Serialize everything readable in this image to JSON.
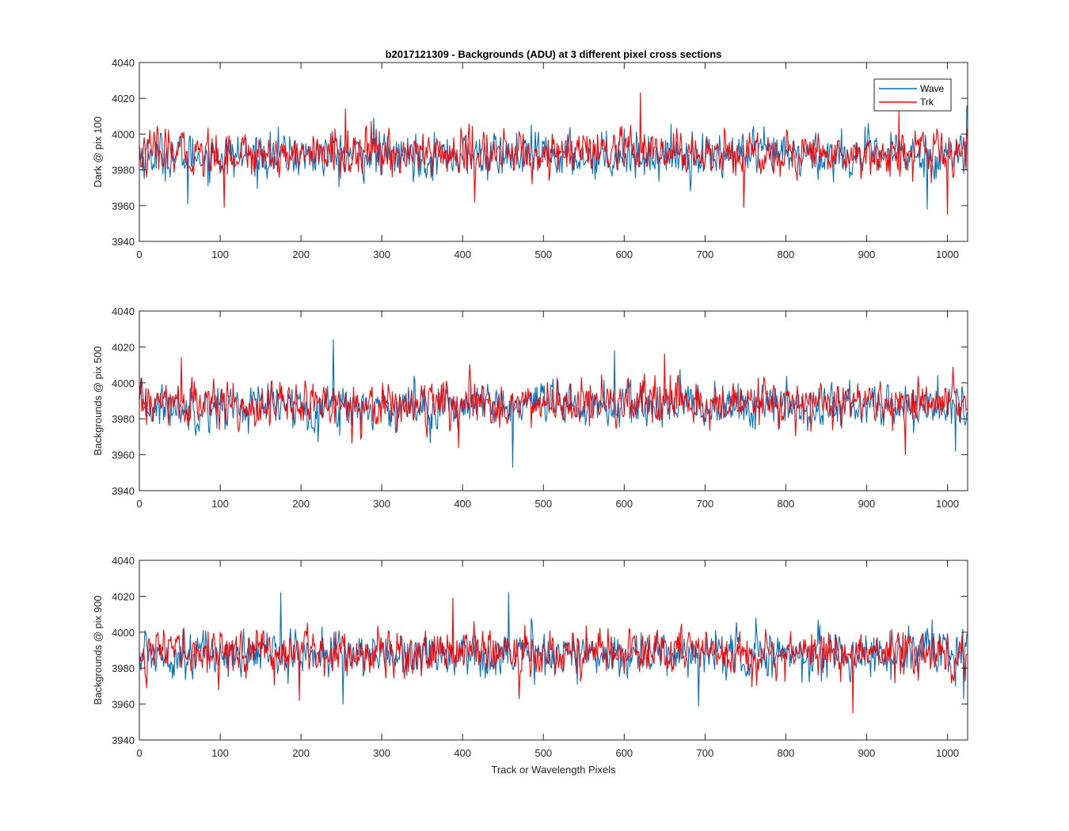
{
  "chart_data": [
    {
      "type": "line",
      "title": "b2017121309 - Backgrounds (ADU) at 3 different pixel cross sections",
      "xlabel": "",
      "ylabel": "Dark @ pix 100",
      "xlim": [
        0,
        1025
      ],
      "ylim": [
        3940,
        4040
      ],
      "xticks": [
        "0",
        "100",
        "200",
        "300",
        "400",
        "500",
        "600",
        "700",
        "800",
        "900",
        "1000"
      ],
      "yticks": [
        "3940",
        "3960",
        "3980",
        "4000",
        "4020",
        "4040"
      ],
      "legend": {
        "position": "top-right",
        "entries": [
          "Wave",
          "Trk"
        ]
      },
      "series": [
        {
          "name": "Wave",
          "color": "#0072BD",
          "mean": 3988,
          "noise": 8,
          "spikes": [
            [
              60,
              3961
            ],
            [
              290,
              4009
            ],
            [
              975,
              3958
            ],
            [
              1024,
              4016
            ],
            [
              600,
              4003
            ]
          ]
        },
        {
          "name": "Trk",
          "color": "#FF0000",
          "mean": 3989,
          "noise": 8,
          "spikes": [
            [
              620,
              4023
            ],
            [
              1000,
              3955
            ],
            [
              105,
              3959
            ],
            [
              415,
              3962
            ],
            [
              748,
              3959
            ],
            [
              940,
              4013
            ],
            [
              255,
              4014
            ]
          ]
        }
      ]
    },
    {
      "type": "line",
      "title": "",
      "xlabel": "",
      "ylabel": "Backgrounds @ pix 500",
      "xlim": [
        0,
        1025
      ],
      "ylim": [
        3940,
        4040
      ],
      "xticks": [
        "0",
        "100",
        "200",
        "300",
        "400",
        "500",
        "600",
        "700",
        "800",
        "900",
        "1000"
      ],
      "yticks": [
        "3940",
        "3960",
        "3980",
        "4000",
        "4020",
        "4040"
      ],
      "series": [
        {
          "name": "Wave",
          "color": "#0072BD",
          "mean": 3987,
          "noise": 8,
          "spikes": [
            [
              240,
              4024
            ],
            [
              462,
              3953
            ],
            [
              588,
              4018
            ],
            [
              1010,
              3962
            ]
          ]
        },
        {
          "name": "Trk",
          "color": "#FF0000",
          "mean": 3988,
          "noise": 8,
          "spikes": [
            [
              52,
              4014
            ],
            [
              395,
              3964
            ],
            [
              948,
              3960
            ],
            [
              650,
              4016
            ]
          ]
        }
      ]
    },
    {
      "type": "line",
      "title": "",
      "xlabel": "Track or Wavelength Pixels",
      "ylabel": "Backgrounds @ pix 900",
      "xlim": [
        0,
        1025
      ],
      "ylim": [
        3940,
        4040
      ],
      "xticks": [
        "0",
        "100",
        "200",
        "300",
        "400",
        "500",
        "600",
        "700",
        "800",
        "900",
        "1000"
      ],
      "yticks": [
        "3940",
        "3960",
        "3980",
        "4000",
        "4020",
        "4040"
      ],
      "series": [
        {
          "name": "Wave",
          "color": "#0072BD",
          "mean": 3988,
          "noise": 8,
          "spikes": [
            [
              175,
              4022
            ],
            [
              457,
              4022
            ],
            [
              252,
              3960
            ],
            [
              692,
              3959
            ],
            [
              1020,
              3963
            ]
          ]
        },
        {
          "name": "Trk",
          "color": "#FF0000",
          "mean": 3989,
          "noise": 8,
          "spikes": [
            [
              388,
              4019
            ],
            [
              883,
              3955
            ],
            [
              198,
              3962
            ],
            [
              470,
              3963
            ]
          ]
        }
      ]
    }
  ]
}
